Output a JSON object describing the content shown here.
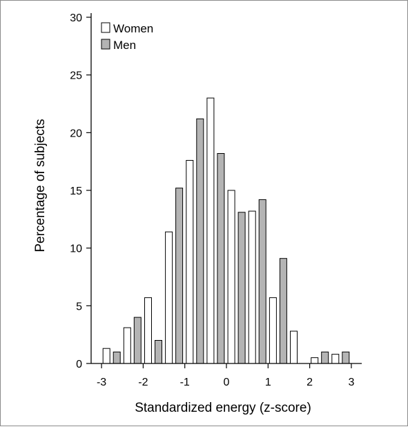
{
  "chart_data": {
    "type": "bar",
    "xlabel": "Standardized energy (z-score)",
    "ylabel": "Percentage of subjects",
    "xlim": [
      -3.25,
      3.25
    ],
    "ylim": [
      0,
      30
    ],
    "x_ticks": [
      "-3",
      "-2",
      "-1",
      "0",
      "1",
      "2",
      "3"
    ],
    "y_ticks": [
      "0",
      "5",
      "10",
      "15",
      "20",
      "25",
      "30"
    ],
    "bin_centers": [
      -2.75,
      -2.25,
      -1.75,
      -1.25,
      -0.75,
      -0.25,
      0.25,
      0.75,
      1.25,
      1.75,
      2.25,
      2.75
    ],
    "legend_position": "top-left",
    "grid": false,
    "series": [
      {
        "name": "Women",
        "color": "#ffffff",
        "values": [
          1.3,
          3.1,
          5.7,
          11.4,
          17.6,
          23.0,
          15.0,
          13.2,
          5.7,
          2.8,
          0.5,
          0.8
        ]
      },
      {
        "name": "Men",
        "color": "#b4b4b4",
        "values": [
          1.0,
          4.0,
          2.0,
          15.2,
          21.2,
          18.2,
          13.1,
          14.2,
          9.1,
          0.0,
          1.0,
          1.0
        ]
      }
    ]
  }
}
